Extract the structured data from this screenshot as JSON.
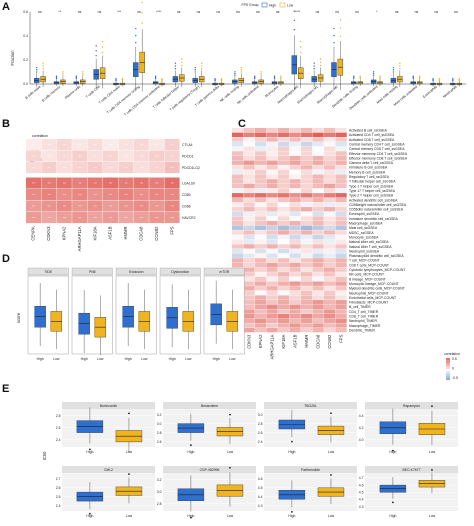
{
  "panels": {
    "a": "A",
    "b": "B",
    "c": "C",
    "d": "D",
    "e": "E"
  },
  "colors": {
    "high": "#2f6fcf",
    "low": "#f0b41e",
    "heat_high": "#d73027",
    "heat_mid": "#ffffff",
    "heat_low": "#4575b4"
  },
  "chart_data": [
    {
      "panel": "A",
      "type": "box",
      "legend_title": "FPS Group",
      "legend": [
        "High",
        "Low"
      ],
      "ylabel": "Fraction",
      "ylim": [
        0,
        0.6
      ],
      "yticks": [
        "0.0",
        "0.2",
        "0.4",
        "0.6"
      ],
      "categories": [
        "B cells naive",
        "B cells memory",
        "Plasma cells",
        "T cells CD8",
        "T cells CD4 naive",
        "T cells CD4 memory resting",
        "T cells CD4 memory activated",
        "T cells follicular helper",
        "T cells regulatory (Tregs)",
        "T cells gamma delta",
        "NK cells resting",
        "NK cells activated",
        "Monocytes",
        "Macrophages M0",
        "Macrophages M1",
        "Macrophages M2",
        "Dendritic cells resting",
        "Dendritic cells activated",
        "Mast cells resting",
        "Mast cells activated",
        "Eosinophils",
        "Neutrophils"
      ],
      "significance": [
        "ns",
        "**",
        "ns",
        "ns",
        "***",
        "ns",
        "****",
        "ns",
        "ns",
        "ns",
        "ns",
        "ns",
        "ns",
        "****",
        "ns",
        "ns",
        "ns",
        "*",
        "ns",
        "ns",
        "ns",
        "ns"
      ],
      "high_median": [
        0.03,
        0.01,
        0.01,
        0.08,
        0.0,
        0.12,
        0.01,
        0.04,
        0.03,
        0.0,
        0.02,
        0.01,
        0.01,
        0.16,
        0.04,
        0.12,
        0.01,
        0.02,
        0.03,
        0.01,
        0.0,
        0.0
      ],
      "low_median": [
        0.04,
        0.02,
        0.02,
        0.09,
        0.0,
        0.18,
        0.0,
        0.05,
        0.04,
        0.0,
        0.03,
        0.02,
        0.01,
        0.09,
        0.05,
        0.14,
        0.01,
        0.01,
        0.04,
        0.01,
        0.0,
        0.0
      ]
    },
    {
      "panel": "B",
      "type": "heatmap",
      "legend_title": "correlation",
      "legend_ticks": [
        "0.5",
        "0",
        "-0.5"
      ],
      "rows": [
        "CTLA4",
        "PDCD1",
        "PDCD1LG2",
        "LGALS9",
        "CD80",
        "CD86",
        "HAVCR2"
      ],
      "cols": [
        "CENPA",
        "CDKN3",
        "KPNA2",
        "ARHGAP11A",
        "KIF18A",
        "ASF1B",
        "HMMR",
        "CDCA8",
        "CCNB2",
        "FPS"
      ],
      "row_level": [
        0.05,
        0.08,
        0.1,
        0.55,
        0.45,
        0.4,
        0.35
      ],
      "stars": "***"
    },
    {
      "panel": "C",
      "type": "heatmap",
      "legend_title": "correlation",
      "legend_ticks": [
        "0.5",
        "0",
        "-0.5"
      ],
      "cols": [
        "CENPA",
        "CDKN3",
        "KPNA2",
        "ARHGAP11A",
        "KIF18A",
        "ASF1B",
        "HMMR",
        "CDCA8",
        "CCNB2",
        "FPS"
      ],
      "rows": [
        "Activated B cell_ssGSEA",
        "Activated CD4 T cell_ssGSEA",
        "Activated CD8 T cell_ssGSEA",
        "Central memory CD4 T cell_ssGSEA",
        "Central memory CD8 T cell_ssGSEA",
        "Effector memeory CD4 T cell_ssGSEA",
        "Effector memeory CD8 T cell_ssGSEA",
        "Gamma delta T cell_ssGSEA",
        "Immature B cell_ssGSEA",
        "Memory B cell_ssGSEA",
        "Regulatory T cell_ssGSEA",
        "T follicular helper cell_ssGSEA",
        "Type 1 T helper cell_ssGSEA",
        "Type 17 T helper cell_ssGSEA",
        "Type 2 T helper cell_ssGSEA",
        "Activated dendritic cell_ssGSEA",
        "CD56bright natural killer cell_ssGSEA",
        "CD56dim natural killer cell_ssGSEA",
        "Eosinophil_ssGSEA",
        "Immature dendritic cell_ssGSEA",
        "Macrophage_ssGSEA",
        "Mast cell_ssGSEA",
        "MDSC_ssGSEA",
        "Monocyte_ssGSEA",
        "Natural killer cell_ssGSEA",
        "Natural killer T cell_ssGSEA",
        "Neutrophil_ssGSEA",
        "Plasmacytoid dendritic cell_ssGSEA",
        "T cell_MCP-COUNT",
        "CD8 T cells_MCP-COUNT",
        "Cytotoxic lymphocytes_MCP-COUNT",
        "NK cells_MCP-COUNT",
        "B lineage_MCP-COUNT",
        "Monocytic lineage_MCP-COUNT",
        "Myeloid dendritic cells_MCP-COUNT",
        "Neutrophils_MCP-COUNT",
        "Endothelial cells_MCP-COUNT",
        "Fibroblasts_MCP-COUNT",
        "B_cell_TIMER",
        "CD4_T cell_TIMER",
        "CD8_T cell_TIMER",
        "Neutrophil_TIMER",
        "Macrophage_TIMER",
        "Dendritic_TIMER"
      ],
      "row_level": [
        0.2,
        0.6,
        0.15,
        -0.1,
        0.05,
        0.1,
        0.2,
        0.3,
        0.15,
        0.05,
        0.15,
        0.2,
        0.25,
        0.05,
        0.55,
        0.2,
        0.05,
        0.2,
        -0.05,
        0.1,
        0.2,
        -0.3,
        0.2,
        -0.1,
        0.0,
        0.2,
        -0.05,
        -0.1,
        0.2,
        0.25,
        0.2,
        0.15,
        0.1,
        0.3,
        0.2,
        0.1,
        0.2,
        0.3,
        0.35,
        0.3,
        0.4,
        0.35,
        0.3,
        0.25
      ]
    },
    {
      "panel": "D",
      "type": "box",
      "ylabel": "score",
      "groups": [
        "High",
        "Low"
      ],
      "facets": [
        "TIDE",
        "PN6",
        "Exclusion",
        "Dysfunction",
        "mTOR"
      ],
      "high_median": [
        0.1,
        -0.2,
        0.1,
        0.05,
        0.2
      ],
      "low_median": [
        -0.1,
        -0.35,
        -0.1,
        -0.1,
        -0.1
      ],
      "ylim": [
        -1.5,
        1.5
      ]
    },
    {
      "panel": "E",
      "type": "box",
      "ylabel": "IC50",
      "groups": [
        "High",
        "Low"
      ],
      "facets": [
        "Bortezomib",
        "Bexarotene",
        "TBG261",
        "Rapamycin",
        "GW-2",
        "CGP-082996",
        "Parthenolide",
        "BEC-K7677"
      ],
      "facet_yticks": [
        [
          "2.4",
          "2.6",
          "2.8"
        ],
        [
          "2.6",
          "2.8",
          "3.0",
          "3.2"
        ],
        [
          "2.4",
          "2.6",
          "2.8",
          "3.0"
        ],
        [
          "4.0",
          "4.2",
          "4.4"
        ],
        [
          "2.4",
          "2.5",
          "2.6",
          "2.7"
        ],
        [
          "2.8",
          "3.0",
          "3.2"
        ],
        [
          "4.3",
          "4.4",
          "4.5",
          "4.6"
        ],
        [
          "4.3",
          "4.4",
          "4.5",
          "4.6",
          "4.7"
        ]
      ],
      "high_median": [
        2.62,
        2.9,
        2.78,
        4.2,
        2.5,
        2.95,
        4.42,
        4.55
      ],
      "low_median": [
        2.46,
        2.82,
        2.65,
        4.18,
        2.56,
        3.02,
        4.45,
        4.62
      ]
    }
  ]
}
